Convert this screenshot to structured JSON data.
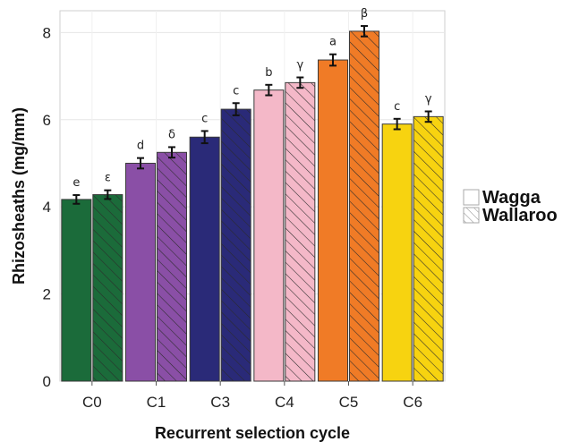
{
  "chart_data": {
    "type": "bar",
    "title": "",
    "xlabel": "Recurrent selection cycle",
    "ylabel": "Rhizosheaths (mg/mm)",
    "ylim": [
      0,
      8.5
    ],
    "yticks": [
      0,
      2,
      4,
      6,
      8
    ],
    "grid": true,
    "legend_position": "right",
    "categories": [
      "C0",
      "C1",
      "C3",
      "C4",
      "C5",
      "C6"
    ],
    "category_colors": [
      "#1b6b3a",
      "#8a4fa6",
      "#2a2a78",
      "#f4b8c8",
      "#f07b26",
      "#f7d310"
    ],
    "series": [
      {
        "name": "Wagga",
        "pattern": "solid",
        "values": [
          4.17,
          5.0,
          5.6,
          6.68,
          7.37,
          5.9
        ],
        "errors": [
          0.1,
          0.12,
          0.14,
          0.12,
          0.13,
          0.12
        ],
        "labels": [
          "e",
          "d",
          "c",
          "b",
          "a",
          "c"
        ]
      },
      {
        "name": "Wallaroo",
        "pattern": "hatched",
        "values": [
          4.28,
          5.25,
          6.24,
          6.85,
          8.03,
          6.07
        ],
        "errors": [
          0.1,
          0.12,
          0.14,
          0.12,
          0.12,
          0.12
        ],
        "labels": [
          "ε",
          "δ",
          "c",
          "γ",
          "β",
          "γ"
        ]
      }
    ]
  }
}
